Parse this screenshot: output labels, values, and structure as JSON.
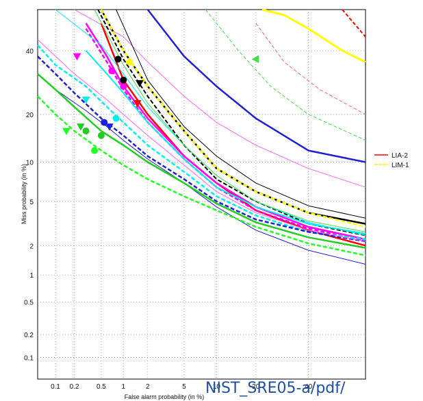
{
  "caption": "NIST_SRE05-a/pdf/",
  "chart_data": {
    "type": "line",
    "title": "",
    "xlabel": "False alarm probability (in %)",
    "ylabel": "Miss probability (in %)",
    "xscale": "normal-deviate",
    "yscale": "normal-deviate",
    "xlim": [
      0.05,
      65
    ],
    "ylim": [
      0.05,
      55
    ],
    "xticks": [
      0.1,
      0.2,
      0.5,
      1,
      2,
      5,
      10,
      20,
      40
    ],
    "xtick_labels": [
      "0.1",
      "0.2",
      "0.5",
      "1",
      "2",
      "5",
      "10",
      "20",
      "40"
    ],
    "yticks": [
      0.1,
      0.2,
      0.5,
      1,
      2,
      5,
      10,
      20,
      40
    ],
    "ytick_labels": [
      "0.1",
      "0.2",
      "0.5",
      "1",
      "2",
      "5",
      "10",
      "20",
      "40"
    ],
    "grid": true,
    "legend": {
      "placement": "right, outside",
      "entries": [
        {
          "label": "LIA-2",
          "color": "#ff0000",
          "dash": "solid"
        },
        {
          "label": "LIM-1",
          "color": "#ffff00",
          "dash": "dashed"
        }
      ]
    },
    "series": [
      {
        "color": "#1f1fd6",
        "width": 2.5,
        "dash": "",
        "x": [
          2,
          5,
          10,
          20,
          40,
          65
        ],
        "y": [
          55,
          38,
          28,
          19,
          12,
          10
        ]
      },
      {
        "color": "#ffff00",
        "width": 3,
        "dash": "",
        "x": [
          22,
          30,
          40,
          55,
          65
        ],
        "y": [
          55,
          53,
          48,
          40,
          36
        ]
      },
      {
        "color": "#ff0000",
        "width": 2,
        "dash": "5,3",
        "x": [
          55,
          65
        ],
        "y": [
          55,
          45
        ]
      },
      {
        "color": "#44dd44",
        "width": 1,
        "dash": "5,3",
        "x": [
          8,
          15,
          25,
          40,
          65
        ],
        "y": [
          55,
          40,
          28,
          20,
          14
        ]
      },
      {
        "color": "#ff66ff",
        "width": 1,
        "dash": "",
        "x": [
          0.2,
          1,
          2,
          5,
          10,
          20,
          40,
          65
        ],
        "y": [
          55,
          45,
          36,
          25,
          18,
          13,
          9,
          6.5
        ]
      },
      {
        "color": "#ff6666",
        "width": 1,
        "dash": "5,3",
        "x": [
          20,
          30,
          45,
          65
        ],
        "y": [
          50,
          36,
          27,
          20
        ]
      },
      {
        "color": "#000000",
        "width": 2.5,
        "dash": "",
        "x": [
          0.5,
          1,
          2,
          5,
          10,
          20,
          40,
          65
        ],
        "y": [
          55,
          40,
          28,
          16,
          9,
          6,
          4,
          3.2
        ]
      },
      {
        "color": "#000000",
        "width": 2,
        "dash": "6,3",
        "x": [
          0.45,
          1,
          2,
          5,
          10,
          20,
          40,
          65
        ],
        "y": [
          55,
          37,
          25,
          13,
          7.5,
          5,
          3.2,
          2.5
        ]
      },
      {
        "color": "#ffff00",
        "width": 2.5,
        "dash": "6,3",
        "x": [
          0.5,
          1,
          2,
          5,
          10,
          20,
          40,
          65
        ],
        "y": [
          55,
          40,
          28,
          16,
          9,
          6,
          4,
          3
        ]
      },
      {
        "color": "#ff0000",
        "width": 2.5,
        "dash": "",
        "x": [
          0.5,
          1,
          2,
          5,
          10,
          20,
          40,
          65
        ],
        "y": [
          50,
          30,
          20,
          11,
          7,
          4.2,
          2.8,
          2
        ]
      },
      {
        "color": "#ff00ff",
        "width": 2.5,
        "dash": "",
        "x": [
          0.3,
          0.6,
          1,
          2,
          5,
          10,
          20,
          40,
          65
        ],
        "y": [
          50,
          38,
          28,
          19,
          11,
          7,
          4.5,
          3,
          2.3
        ]
      },
      {
        "color": "#ff00ff",
        "width": 2.5,
        "dash": "6,3",
        "x": [
          0.3,
          0.6,
          1,
          2,
          5,
          10,
          20,
          40,
          65
        ],
        "y": [
          48,
          36,
          27,
          18,
          10.5,
          6.5,
          4.2,
          2.9,
          2.2
        ]
      },
      {
        "color": "#00eeee",
        "width": 2,
        "dash": "",
        "x": [
          0.3,
          0.6,
          1,
          2,
          5,
          10,
          20,
          40,
          65
        ],
        "y": [
          40,
          32,
          26,
          18,
          10.5,
          6.5,
          4.5,
          3.2,
          2.6
        ]
      },
      {
        "color": "#00eeee",
        "width": 2.5,
        "dash": "6,3",
        "x": [
          0.05,
          0.1,
          0.3,
          0.6,
          1,
          2,
          5,
          10,
          20,
          40,
          65
        ],
        "y": [
          42,
          35,
          28,
          22,
          18,
          13,
          8.5,
          5.5,
          3.8,
          2.7,
          2.3
        ]
      },
      {
        "color": "#00eeee",
        "width": 1,
        "dash": "",
        "x": [
          0.1,
          0.5,
          1,
          2,
          5,
          10,
          20,
          40,
          65
        ],
        "y": [
          55,
          42,
          32,
          22,
          13,
          8,
          5,
          3.3,
          2.5
        ]
      },
      {
        "color": "#1f1fd6",
        "width": 2.5,
        "dash": "6,3",
        "x": [
          0.05,
          0.1,
          0.2,
          0.5,
          1,
          2,
          5,
          10,
          20,
          40,
          65
        ],
        "y": [
          38,
          32,
          26,
          19,
          15,
          11,
          7.5,
          5,
          3.5,
          2.7,
          2.2
        ]
      },
      {
        "color": "#1f1fd6",
        "width": 1,
        "dash": "",
        "x": [
          0.05,
          0.1,
          0.3,
          0.6,
          1,
          2,
          5,
          10,
          20,
          40,
          65
        ],
        "y": [
          32,
          27,
          21,
          17,
          14,
          10.5,
          7,
          4.5,
          2.8,
          1.8,
          1.3
        ]
      },
      {
        "color": "#22cc22",
        "width": 2.5,
        "dash": "",
        "x": [
          0.05,
          0.1,
          0.2,
          0.5,
          1,
          2,
          5,
          10,
          20,
          40,
          65
        ],
        "y": [
          32,
          27,
          22,
          16,
          13,
          10,
          7,
          4.8,
          3.3,
          2.4,
          1.9
        ]
      },
      {
        "color": "#22ff22",
        "width": 2.5,
        "dash": "6,3",
        "x": [
          0.05,
          0.1,
          0.2,
          0.5,
          1,
          2,
          5,
          10,
          20,
          40,
          65
        ],
        "y": [
          25,
          20,
          16,
          12,
          9.5,
          7.5,
          5.5,
          4.2,
          3.0,
          2.1,
          1.6
        ]
      },
      {
        "color": "#ff66ff",
        "width": 1,
        "dash": "",
        "x": [
          0.05,
          0.2,
          0.6,
          1,
          2,
          5,
          10,
          20,
          40,
          65
        ],
        "y": [
          44,
          32,
          24,
          20,
          15,
          9.5,
          6,
          4,
          2.8,
          2.2
        ]
      },
      {
        "color": "#44dd44",
        "width": 1,
        "dash": "",
        "x": [
          0.4,
          1,
          2,
          5,
          10,
          20,
          40,
          65
        ],
        "y": [
          55,
          35,
          23,
          13,
          8,
          5,
          3.4,
          2.7
        ]
      },
      {
        "color": "#000000",
        "width": 1,
        "dash": "",
        "x": [
          0.8,
          2,
          5,
          10,
          20,
          40,
          65
        ],
        "y": [
          55,
          30,
          17,
          11,
          7,
          4.6,
          3.6
        ]
      }
    ],
    "markers": [
      {
        "color": "#ff00ff",
        "x": 0.22,
        "y": 38,
        "shape": "tri-down"
      },
      {
        "color": "#00eeee",
        "x": 0.3,
        "y": 24,
        "shape": "tri-down"
      },
      {
        "color": "#1f1fd6",
        "x": 0.55,
        "y": 18,
        "shape": "circle"
      },
      {
        "color": "#1f1fd6",
        "x": 0.65,
        "y": 17,
        "shape": "tri-down"
      },
      {
        "color": "#00eeee",
        "x": 0.8,
        "y": 19,
        "shape": "circle"
      },
      {
        "color": "#ff00ff",
        "x": 0.7,
        "y": 33,
        "shape": "circle"
      },
      {
        "color": "#ff00ff",
        "x": 1.0,
        "y": 28,
        "shape": "circle"
      },
      {
        "color": "#ff0000",
        "x": 1.5,
        "y": 23,
        "shape": "tri-down"
      },
      {
        "color": "#000000",
        "x": 1.0,
        "y": 30,
        "shape": "circle"
      },
      {
        "color": "#000000",
        "x": 1.6,
        "y": 29,
        "shape": "tri-down"
      },
      {
        "color": "#000000",
        "x": 0.85,
        "y": 37,
        "shape": "circle"
      },
      {
        "color": "#22cc22",
        "x": 0.25,
        "y": 17,
        "shape": "tri-down"
      },
      {
        "color": "#22cc22",
        "x": 0.3,
        "y": 16,
        "shape": "circle"
      },
      {
        "color": "#22ff22",
        "x": 0.4,
        "y": 12,
        "shape": "circle"
      },
      {
        "color": "#22cc22",
        "x": 0.5,
        "y": 15,
        "shape": "circle"
      },
      {
        "color": "#22ff22",
        "x": 0.15,
        "y": 16,
        "shape": "tri-down"
      },
      {
        "color": "#44dd44",
        "x": 20,
        "y": 37,
        "shape": "tri-left"
      },
      {
        "color": "#ffff00",
        "x": 1.2,
        "y": 36,
        "shape": "circle"
      }
    ]
  }
}
